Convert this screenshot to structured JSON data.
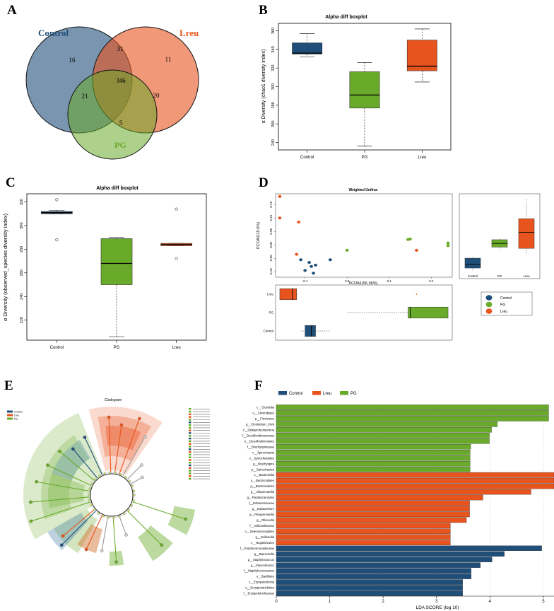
{
  "panel_letters": {
    "a": "A",
    "b": "B",
    "c": "C",
    "d": "D",
    "e": "E",
    "f": "F"
  },
  "colors": {
    "control": "#1f4e79",
    "lreu": "#e8541e",
    "pg": "#6aaa2a"
  },
  "chart_data": [
    {
      "type": "venn",
      "sets": {
        "control": "Control",
        "lreu": "Lreu",
        "pg": "PG"
      },
      "regions": {
        "control_only": "16",
        "lreu_only": "11",
        "pg_only": "5",
        "control_lreu": "31",
        "control_pg": "21",
        "lreu_pg": "20",
        "all": "346"
      }
    },
    {
      "type": "boxplot",
      "title": "Alpha diff boxplot",
      "ylabel": "α Diversity (chao1 diversity index)",
      "categories": [
        "Control",
        "PG",
        "Lreu"
      ],
      "ylim": [
        232,
        368
      ],
      "yticks": [
        "240",
        "260",
        "280",
        "300",
        "320",
        "340",
        "360"
      ],
      "tick_values": [
        240,
        260,
        280,
        300,
        320,
        340,
        360
      ],
      "boxes": [
        {
          "min": 332,
          "q1": 335,
          "median": 336,
          "q3": 347,
          "max": 357
        },
        {
          "min": 236,
          "q1": 277,
          "median": 291,
          "q3": 316,
          "max": 326
        },
        {
          "min": 305,
          "q1": 317,
          "median": 322,
          "q3": 350,
          "max": 362
        }
      ]
    },
    {
      "type": "boxplot",
      "title": "Alpha diff boxplot",
      "ylabel": "α Diversity (observed_species diversity index)",
      "categories": [
        "Control",
        "PG",
        "Lreu"
      ],
      "ylim": [
        203,
        327
      ],
      "yticks": [
        "220",
        "240",
        "260",
        "280",
        "300",
        "320"
      ],
      "tick_values": [
        220,
        240,
        260,
        280,
        300,
        320
      ],
      "boxes": [
        {
          "min": 310,
          "q1": 310,
          "median": 311,
          "q3": 312,
          "max": 313,
          "outliers": [
            322,
            288
          ]
        },
        {
          "min": 206,
          "q1": 250,
          "median": 268,
          "q3": 289,
          "max": 290
        },
        {
          "min": 283,
          "q1": 283,
          "median": 284,
          "q3": 285,
          "max": 285,
          "outliers": [
            314,
            272
          ]
        }
      ]
    },
    {
      "type": "scatter",
      "title": "Weighted Unifrac",
      "xlabel": "PCOA1(56.96%)",
      "ylabel": "PCOA2(15.5%)",
      "xlim": [
        -0.17,
        0.25
      ],
      "ylim": [
        -0.12,
        0.19
      ],
      "xticks": [
        "-0.1",
        "0.0",
        "0.1",
        "0.2"
      ],
      "xtick_values": [
        -0.1,
        0.0,
        0.1,
        0.2
      ],
      "yticks": [
        "-0.10",
        "-0.05",
        "0.00",
        "0.05",
        "0.10",
        "0.15"
      ],
      "ytick_values": [
        -0.1,
        -0.05,
        0.0,
        0.05,
        0.1,
        0.15
      ],
      "series": [
        {
          "name": "Control",
          "points": [
            [
              -0.11,
              -0.055
            ],
            [
              -0.1,
              -0.095
            ],
            [
              -0.085,
              -0.08
            ],
            [
              -0.08,
              -0.105
            ],
            [
              -0.075,
              -0.075
            ],
            [
              -0.04,
              -0.055
            ],
            [
              -0.09,
              -0.065
            ]
          ]
        },
        {
          "name": "PG",
          "points": [
            [
              0.0,
              -0.02
            ],
            [
              0.145,
              0.02
            ],
            [
              0.15,
              0.022
            ],
            [
              0.24,
              0.007
            ],
            [
              0.24,
              -0.003
            ]
          ]
        },
        {
          "name": "Lreu",
          "points": [
            [
              -0.16,
              0.18
            ],
            [
              -0.16,
              0.1
            ],
            [
              -0.115,
              0.085
            ],
            [
              -0.12,
              -0.035
            ],
            [
              0.165,
              -0.02
            ]
          ]
        }
      ],
      "legend": [
        "Control",
        "PG",
        "Lreu"
      ],
      "side_box": {
        "categories": [
          "Control",
          "PG",
          "Lreu"
        ],
        "boxes": [
          {
            "min": -0.11,
            "q1": -0.1,
            "median": -0.085,
            "q3": -0.06,
            "max": -0.055
          },
          {
            "min": -0.03,
            "q1": -0.015,
            "median": 0.0,
            "q3": 0.015,
            "max": 0.02
          },
          {
            "min": -0.04,
            "q1": -0.02,
            "median": 0.045,
            "q3": 0.1,
            "max": 0.18
          }
        ]
      },
      "bottom_box": {
        "categories": [
          "Lreu",
          "PG",
          "Control"
        ],
        "boxes": [
          {
            "min": -0.16,
            "q1": -0.16,
            "median": -0.13,
            "q3": -0.12,
            "max": -0.115,
            "outliers": [
              0.165
            ]
          },
          {
            "min": 0.0,
            "q1": 0.145,
            "median": 0.15,
            "q3": 0.24,
            "max": 0.24
          },
          {
            "min": -0.11,
            "q1": -0.1,
            "median": -0.085,
            "q3": -0.075,
            "max": -0.04
          }
        ]
      }
    },
    {
      "type": "cladogram",
      "title": "Cladogram",
      "legend": [
        "Control",
        "Lreu",
        "PG"
      ]
    },
    {
      "type": "bar",
      "orientation": "horizontal",
      "xlabel": "LDA SCORE (log 10)",
      "xlim": [
        0,
        5.2
      ],
      "xticks": [
        "0",
        "1",
        "2",
        "3",
        "4",
        "5"
      ],
      "xtick_values": [
        0,
        1,
        2,
        3,
        4,
        5
      ],
      "legend": [
        "Control",
        "Lreu",
        "PG"
      ],
      "series": [
        {
          "name": "PG",
          "items": [
            {
              "label": "c__Clostridia",
              "value": 5.1
            },
            {
              "label": "o__Clostridiales",
              "value": 5.1
            },
            {
              "label": "p__Firmicutes",
              "value": 5.1
            },
            {
              "label": "g__Clostridium_XIVa",
              "value": 4.14
            },
            {
              "label": "c__Deltaproteobacteria",
              "value": 4.03
            },
            {
              "label": "f__Desulfovibrionaceae",
              "value": 3.99
            },
            {
              "label": "o__Desulfovibrionales",
              "value": 3.99
            },
            {
              "label": "f__Brachyspiraceae",
              "value": 3.64
            },
            {
              "label": "c__Spirochaetia",
              "value": 3.63
            },
            {
              "label": "o__Spirochaetales",
              "value": 3.63
            },
            {
              "label": "g__Brachyspira",
              "value": 3.63
            },
            {
              "label": "p__Spirochaetes",
              "value": 3.63
            }
          ]
        },
        {
          "name": "Lreu",
          "items": [
            {
              "label": "c__Bacteroidia",
              "value": 5.2
            },
            {
              "label": "o__Bacteroidales",
              "value": 5.2
            },
            {
              "label": "p__Bacteroidetes",
              "value": 5.2
            },
            {
              "label": "g__Alloprevotella",
              "value": 4.77
            },
            {
              "label": "g__Parabacteroides",
              "value": 3.87
            },
            {
              "label": "f__Eubacteriaceae",
              "value": 3.62
            },
            {
              "label": "g__Eubacterium",
              "value": 3.62
            },
            {
              "label": "g__Paraprevotella",
              "value": 3.62
            },
            {
              "label": "g__Rikenella",
              "value": 3.56
            },
            {
              "label": "f__Veillonellaceae",
              "value": 3.26
            },
            {
              "label": "o__Selenomonadales",
              "value": 3.26
            },
            {
              "label": "g__Veillonella",
              "value": 3.26
            },
            {
              "label": "c__Negativicutes",
              "value": 3.26
            }
          ]
        },
        {
          "name": "Control",
          "items": [
            {
              "label": "f__Porphyromonadaceae",
              "value": 4.97
            },
            {
              "label": "g__Barnesiella",
              "value": 4.27
            },
            {
              "label": "g__Staphylococcus",
              "value": 4.04
            },
            {
              "label": "g__Flavonifractor",
              "value": 3.82
            },
            {
              "label": "f__Staphylococcaceae",
              "value": 3.65
            },
            {
              "label": "o__Bacillales",
              "value": 3.65
            },
            {
              "label": "c__Erysipelotrichia",
              "value": 3.49
            },
            {
              "label": "o__Erysipelotrichales",
              "value": 3.49
            },
            {
              "label": "f__Erysipelotrichaceae",
              "value": 3.49
            }
          ]
        }
      ]
    }
  ]
}
